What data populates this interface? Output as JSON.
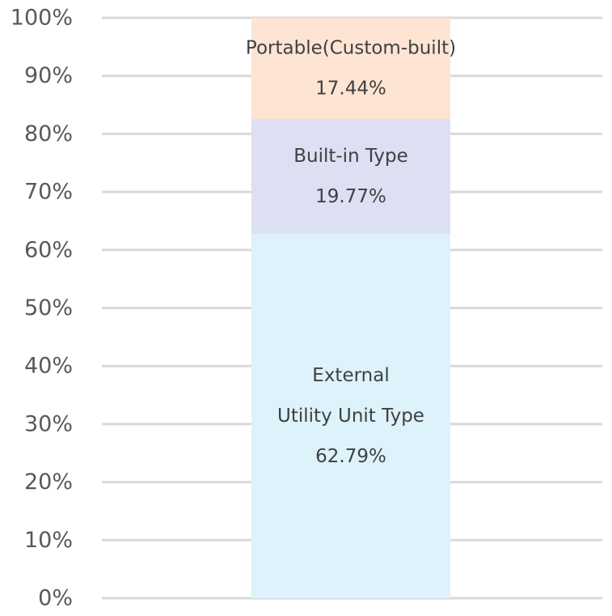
{
  "chart_data": {
    "type": "bar",
    "stacked": true,
    "title": "",
    "xlabel": "",
    "ylabel": "",
    "ylim": [
      0,
      100
    ],
    "y_ticks": [
      "0%",
      "10%",
      "20%",
      "30%",
      "40%",
      "50%",
      "60%",
      "70%",
      "80%",
      "90%",
      "100%"
    ],
    "grid": true,
    "series": [
      {
        "label_lines": [
          "External",
          "Utility Unit Type",
          "62.79%"
        ],
        "value": 62.79,
        "color": "#ddf2fa"
      },
      {
        "label_lines": [
          "Built-in Type",
          "19.77%"
        ],
        "value": 19.77,
        "color": "#dddff2"
      },
      {
        "label_lines": [
          "Portable(Custom-built)",
          "17.44%"
        ],
        "value": 17.44,
        "color": "#fde4d3"
      }
    ]
  },
  "colors": {
    "grid": "#d9d9d9",
    "tick_text": "#595959",
    "label_text": "#404040"
  }
}
